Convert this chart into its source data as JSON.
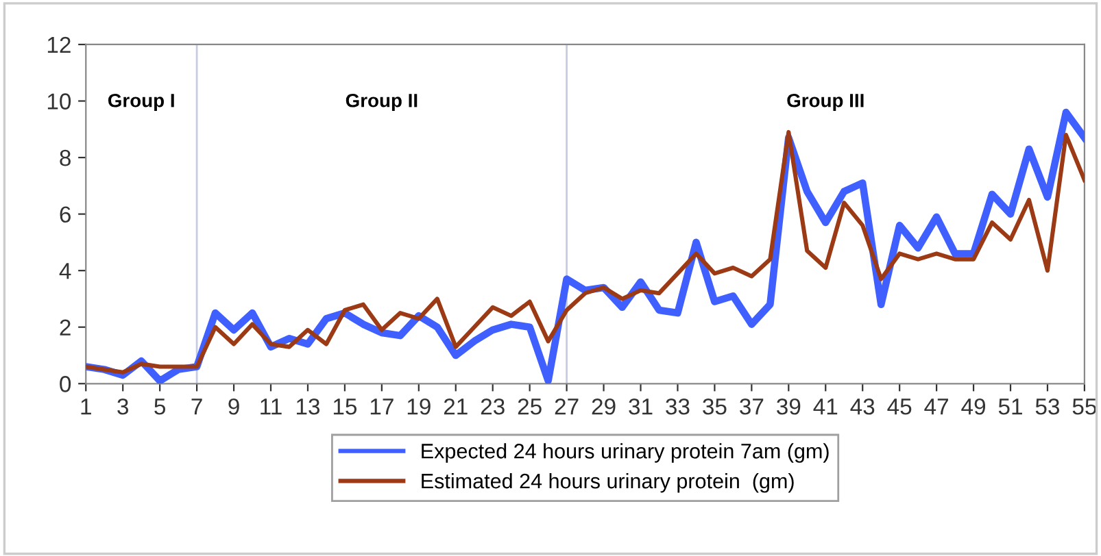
{
  "chart_data": {
    "type": "line",
    "x": [
      1,
      2,
      3,
      4,
      5,
      6,
      7,
      8,
      9,
      10,
      11,
      12,
      13,
      14,
      15,
      16,
      17,
      18,
      19,
      20,
      21,
      22,
      23,
      24,
      25,
      26,
      27,
      28,
      29,
      30,
      31,
      32,
      33,
      34,
      35,
      36,
      37,
      38,
      39,
      40,
      41,
      42,
      43,
      44,
      45,
      46,
      47,
      48,
      49,
      50,
      51,
      52,
      53,
      54,
      55
    ],
    "series": [
      {
        "name": "Expected 24 hours urinary protein 7am (gm)",
        "color": "#3f5fff",
        "values": [
          0.6,
          0.5,
          0.3,
          0.8,
          0.1,
          0.5,
          0.6,
          2.5,
          1.9,
          2.5,
          1.3,
          1.6,
          1.4,
          2.3,
          2.5,
          2.1,
          1.8,
          1.7,
          2.4,
          2.0,
          1.0,
          1.5,
          1.9,
          2.1,
          2.0,
          0.1,
          3.7,
          3.3,
          3.4,
          2.7,
          3.6,
          2.6,
          2.5,
          5.0,
          2.9,
          3.1,
          2.1,
          2.8,
          8.7,
          6.8,
          5.7,
          6.8,
          7.1,
          2.8,
          5.6,
          4.8,
          5.9,
          4.6,
          4.6,
          6.7,
          6.0,
          8.3,
          6.6,
          9.6,
          8.7
        ]
      },
      {
        "name": "Estimated 24 hours urinary protein  (gm)",
        "color": "#9b3a14",
        "values": [
          0.6,
          0.5,
          0.4,
          0.7,
          0.6,
          0.6,
          0.6,
          2.0,
          1.4,
          2.1,
          1.4,
          1.3,
          1.9,
          1.4,
          2.6,
          2.8,
          1.9,
          2.5,
          2.3,
          3.0,
          1.3,
          2.0,
          2.7,
          2.4,
          2.9,
          1.5,
          2.6,
          3.2,
          3.4,
          3.0,
          3.3,
          3.2,
          3.9,
          4.6,
          3.9,
          4.1,
          3.8,
          4.4,
          8.9,
          4.7,
          4.1,
          6.4,
          5.6,
          3.7,
          4.6,
          4.4,
          4.6,
          4.4,
          4.4,
          5.7,
          5.1,
          6.5,
          4.0,
          8.8,
          7.2
        ]
      }
    ],
    "xlim": [
      1,
      55
    ],
    "xticks": [
      1,
      3,
      5,
      7,
      9,
      11,
      13,
      15,
      17,
      19,
      21,
      23,
      25,
      27,
      29,
      31,
      33,
      35,
      37,
      39,
      41,
      43,
      45,
      47,
      49,
      51,
      53,
      55
    ],
    "ylim": [
      0,
      12
    ],
    "yticks": [
      0,
      2,
      4,
      6,
      8,
      10,
      12
    ],
    "ref_lines": [
      {
        "axis": "x",
        "value": 7,
        "label": null,
        "color": "#c8cce0"
      },
      {
        "axis": "x",
        "value": 27,
        "label": null,
        "color": "#c8cce0"
      }
    ],
    "annotations": [
      "Group I",
      "Group II",
      "Group III"
    ],
    "grid": false,
    "legend": "bottom",
    "marker": "none",
    "line_style": "solid"
  }
}
